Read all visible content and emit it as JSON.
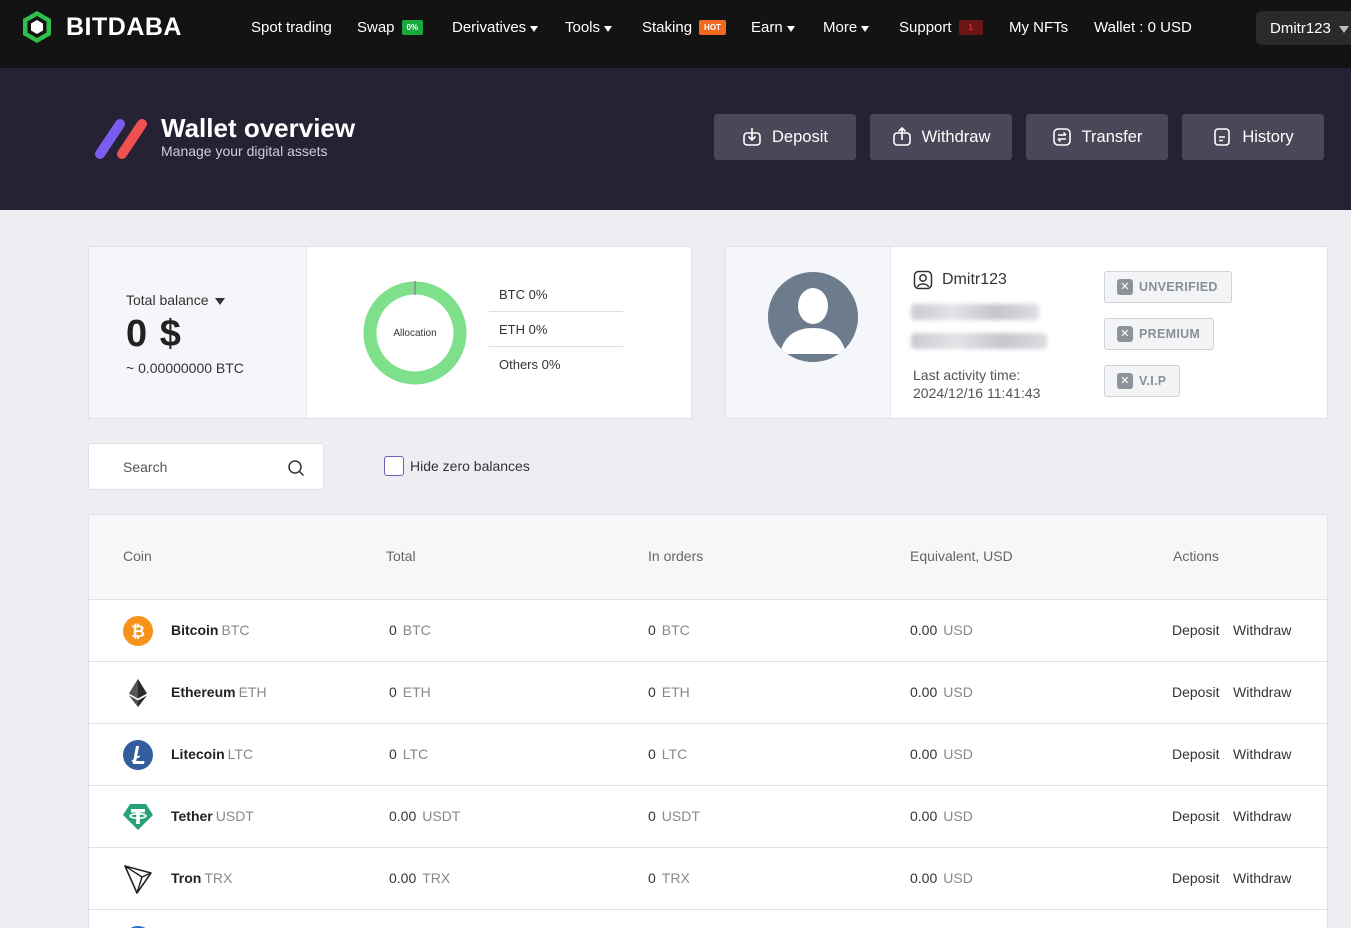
{
  "brand": {
    "name": "BITDABA"
  },
  "nav": {
    "spot": "Spot trading",
    "swap": "Swap",
    "swap_badge": "0%",
    "derivatives": "Derivatives",
    "tools": "Tools",
    "staking": "Staking",
    "staking_badge": "HOT",
    "earn": "Earn",
    "more": "More",
    "support": "Support",
    "support_badge": "1",
    "nfts": "My NFTs",
    "wallet": "Wallet : 0 USD",
    "user": "Dmitr123"
  },
  "header": {
    "title": "Wallet overview",
    "subtitle": "Manage your digital assets",
    "buttons": {
      "deposit": "Deposit",
      "withdraw": "Withdraw",
      "transfer": "Transfer",
      "history": "History"
    }
  },
  "balance": {
    "label": "Total balance",
    "value": "0 $",
    "btc": "~ 0.00000000 BTC",
    "donut_label": "Allocation",
    "allocation": [
      "BTC 0%",
      "ETH 0%",
      "Others 0%"
    ]
  },
  "profile": {
    "username": "Dmitr123",
    "activity_label": "Last activity time:",
    "activity_time": "2024/12/16 11:41:43",
    "tags": [
      "UNVERIFIED",
      "PREMIUM",
      "V.I.P"
    ]
  },
  "filters": {
    "search_placeholder": "Search",
    "hide_zero": "Hide zero balances"
  },
  "table": {
    "headers": {
      "coin": "Coin",
      "total": "Total",
      "orders": "In orders",
      "equiv": "Equivalent, USD",
      "actions": "Actions"
    },
    "action_deposit": "Deposit",
    "action_withdraw": "Withdraw",
    "rows": [
      {
        "name": "Bitcoin",
        "symbol": "BTC",
        "total": "0",
        "orders": "0",
        "equiv": "0.00",
        "unit": "USD"
      },
      {
        "name": "Ethereum",
        "symbol": "ETH",
        "total": "0",
        "orders": "0",
        "equiv": "0.00",
        "unit": "USD"
      },
      {
        "name": "Litecoin",
        "symbol": "LTC",
        "total": "0",
        "orders": "0",
        "equiv": "0.00",
        "unit": "USD"
      },
      {
        "name": "Tether",
        "symbol": "USDT",
        "total": "0.00",
        "orders": "0",
        "equiv": "0.00",
        "unit": "USD"
      },
      {
        "name": "Tron",
        "symbol": "TRX",
        "total": "0.00",
        "orders": "0",
        "equiv": "0.00",
        "unit": "USD"
      }
    ]
  },
  "colors": {
    "nav_bg": "#131313",
    "banner_bg": "#252233",
    "button_bg": "#4a4858",
    "donut": "#7fe08b",
    "btc": "#f7931a",
    "ltc": "#345d9d",
    "usdt": "#26a17b"
  }
}
